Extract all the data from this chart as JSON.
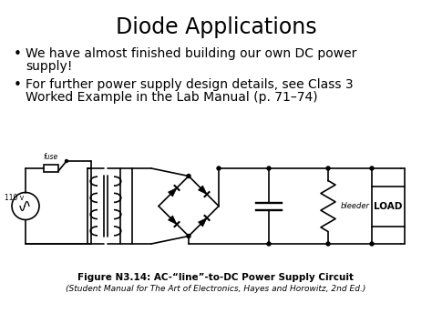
{
  "title": "Diode Applications",
  "bullet1_l1": "We have almost finished building our own DC power",
  "bullet1_l2": "supply!",
  "bullet2_l1": "For further power supply design details, see Class 3",
  "bullet2_l2": "Worked Example in the Lab Manual (p. 71–74)",
  "fig_caption": "Figure N3.14: AC-“line”-to-DC Power Supply Circuit",
  "fig_subcaption": "(Student Manual for The Art of Electronics, Hayes and Horowitz, 2nd Ed.)",
  "bg_color": "#ffffff",
  "text_color": "#000000",
  "title_fontsize": 17,
  "bullet_fontsize": 10,
  "caption_fontsize": 7.5,
  "subcaption_fontsize": 6.5,
  "lw": 1.2
}
